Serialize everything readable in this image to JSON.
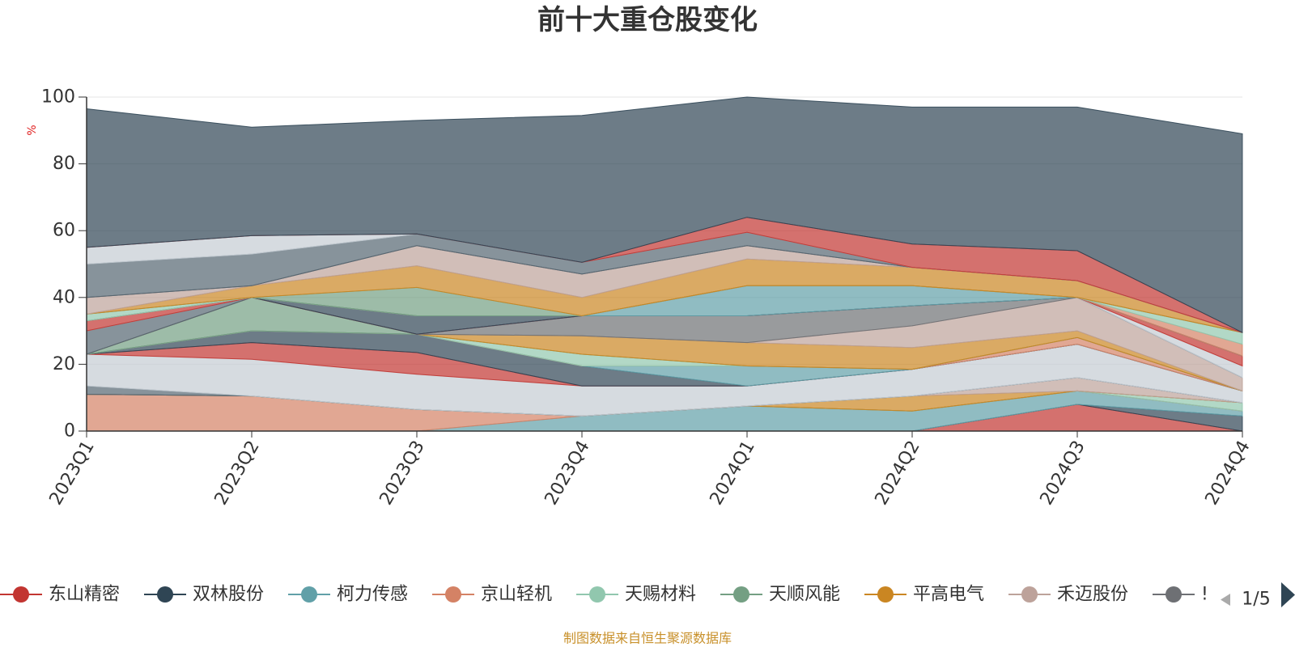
{
  "chart_data": {
    "type": "area",
    "stacked": true,
    "title": "前十大重仓股变化",
    "ylabel": "%",
    "ylim": [
      0,
      100
    ],
    "yticks": [
      0,
      20,
      40,
      60,
      80,
      100
    ],
    "grid": true,
    "legend_position": "bottom",
    "categories": [
      "2023Q1",
      "2023Q2",
      "2023Q3",
      "2023Q4",
      "2024Q1",
      "2024Q2",
      "2024Q3",
      "2024Q4"
    ],
    "series": [
      {
        "name": "东山精密",
        "color": "#c23531",
        "values": [
          0,
          0,
          0,
          0,
          0,
          0,
          8,
          0
        ]
      },
      {
        "name": "双林股份",
        "color": "#2f4554",
        "values": [
          0,
          0,
          0,
          0,
          0,
          0,
          0,
          4.5
        ]
      },
      {
        "name": "柯力传感",
        "color": "#61a0a8",
        "values": [
          0,
          0,
          0,
          4.5,
          7.5,
          6,
          4,
          1.5
        ]
      },
      {
        "name": "京山轻机",
        "color": "#d48265",
        "values": [
          11,
          10.5,
          6.5,
          0,
          0,
          0,
          0,
          0
        ]
      },
      {
        "name": "天赐材料",
        "color": "#91c7ae",
        "values": [
          0,
          0,
          0,
          0,
          0,
          0,
          0,
          2.5
        ]
      },
      {
        "name": "天顺风能",
        "color": "#749f83",
        "values": [
          0,
          0,
          0,
          0,
          0,
          0,
          0,
          0
        ]
      },
      {
        "name": "平高电气",
        "color": "#ca8622",
        "values": [
          0,
          0,
          0,
          0,
          0,
          4.5,
          0,
          0
        ]
      },
      {
        "name": "禾迈股份",
        "color": "#bda29a",
        "values": [
          0,
          0,
          0,
          0,
          0,
          0,
          4,
          0
        ]
      },
      {
        "values": [
          0,
          0,
          0,
          0,
          0,
          0,
          0,
          0
        ]
      },
      {
        "values": [
          2.5,
          0,
          0,
          0,
          0,
          0,
          0,
          0
        ]
      },
      {
        "values": [
          9.5,
          11,
          10.5,
          9,
          6,
          8,
          10,
          3.5
        ]
      },
      {
        "values": [
          0,
          5,
          6.5,
          0,
          0,
          0,
          0,
          0
        ]
      },
      {
        "values": [
          0,
          3.5,
          5.5,
          6,
          0,
          0,
          0,
          0
        ]
      },
      {
        "values": [
          0,
          0,
          0,
          0,
          6,
          0,
          0,
          0
        ]
      },
      {
        "values": [
          0,
          0,
          0,
          0,
          0,
          0,
          2,
          0
        ]
      },
      {
        "values": [
          0,
          0,
          0,
          3.5,
          0,
          0,
          0,
          0
        ]
      },
      {
        "values": [
          0,
          10,
          0,
          0,
          0,
          0,
          0,
          0
        ]
      },
      {
        "values": [
          0,
          0,
          0,
          5.5,
          7,
          6.5,
          2,
          0
        ]
      },
      {
        "values": [
          0,
          0,
          0,
          0,
          0,
          6.5,
          10,
          4
        ]
      },
      {
        "values": [
          0,
          0,
          0,
          6,
          8,
          6,
          0,
          0
        ]
      },
      {
        "values": [
          7,
          0,
          0,
          0,
          0,
          0,
          0,
          0
        ]
      },
      {
        "values": [
          0,
          0,
          0,
          0,
          0,
          0,
          0,
          3.5
        ]
      },
      {
        "values": [
          3,
          0,
          0,
          0,
          0,
          0,
          0,
          3
        ]
      },
      {
        "values": [
          0,
          0,
          5.5,
          0,
          0,
          0,
          0,
          0
        ]
      },
      {
        "values": [
          0,
          0,
          0,
          0,
          9,
          6,
          0,
          0
        ]
      },
      {
        "values": [
          0,
          0,
          0,
          0,
          0,
          0,
          0,
          3.5
        ]
      },
      {
        "values": [
          2,
          0,
          0,
          0,
          0,
          0,
          0,
          3.5
        ]
      },
      {
        "values": [
          0,
          0,
          8.5,
          0,
          0,
          0,
          0,
          0
        ]
      },
      {
        "values": [
          0,
          3.5,
          6.5,
          5.5,
          8,
          5.5,
          5,
          0
        ]
      },
      {
        "values": [
          5,
          0,
          6,
          7,
          4,
          0,
          0,
          0
        ]
      },
      {
        "values": [
          0,
          0,
          0,
          0,
          0,
          0,
          0,
          0
        ]
      },
      {
        "values": [
          10,
          9.5,
          3.5,
          3.5,
          4,
          0,
          0,
          0
        ]
      },
      {
        "values": [
          5,
          5.5,
          0,
          0,
          0,
          0,
          0,
          0
        ]
      },
      {
        "values": [
          0,
          0,
          0,
          0,
          4.5,
          7,
          9,
          0
        ]
      },
      {
        "values": [
          41.5,
          32.5,
          34,
          44,
          36,
          41,
          43,
          59.5
        ]
      }
    ]
  },
  "legend": {
    "page_indicator": "1/5",
    "truncated_item": "!"
  },
  "footer": "制图数据来自恒生聚源数据库"
}
